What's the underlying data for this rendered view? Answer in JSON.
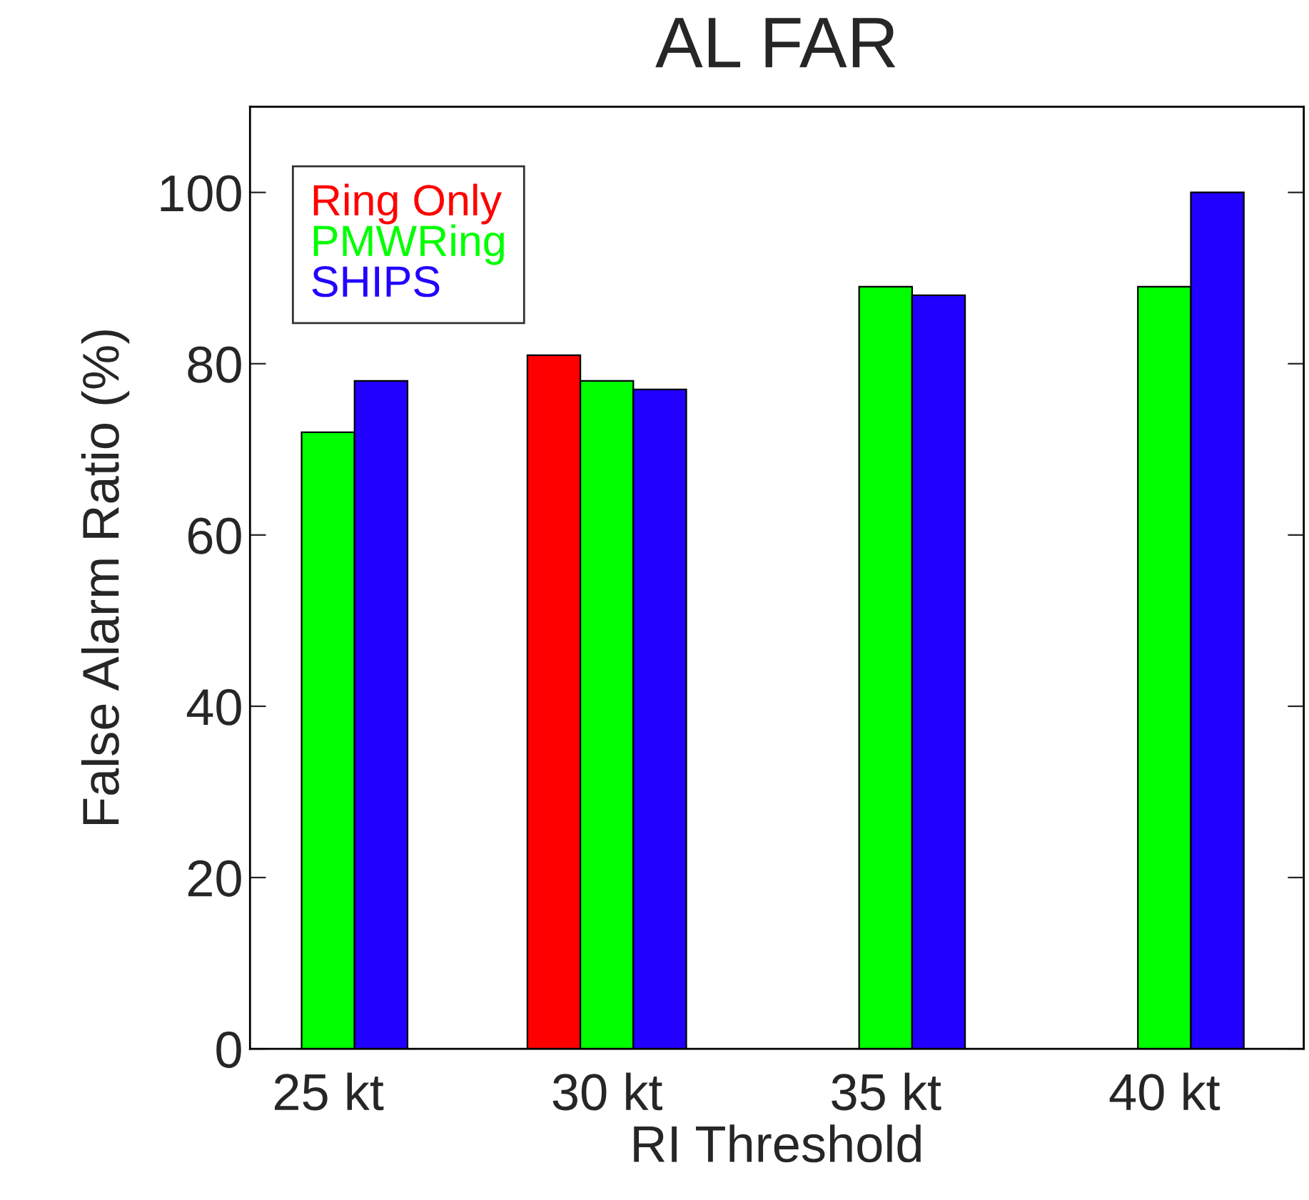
{
  "chart_data": {
    "type": "bar",
    "title": "AL FAR",
    "xlabel": "RI Threshold",
    "ylabel": "False Alarm Ratio (%)",
    "categories": [
      "25 kt",
      "30 kt",
      "35 kt",
      "40 kt"
    ],
    "series": [
      {
        "name": "Ring Only",
        "color": "#ff0000",
        "values": [
          null,
          81,
          null,
          null
        ]
      },
      {
        "name": "PMWRing",
        "color": "#00ff00",
        "values": [
          72,
          78,
          89,
          89
        ]
      },
      {
        "name": "SHIPS",
        "color": "#2200ff",
        "values": [
          78,
          77,
          88,
          100
        ]
      }
    ],
    "ylim": [
      0,
      110
    ],
    "yticks": [
      0,
      20,
      40,
      60,
      80,
      100
    ],
    "grid": false,
    "legend": "top left"
  }
}
